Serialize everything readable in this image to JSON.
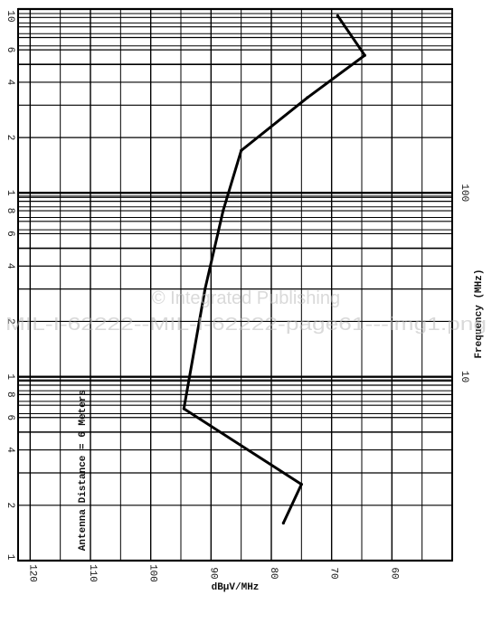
{
  "chart_data": {
    "type": "line",
    "orientation": "frequency-vertical",
    "title": "",
    "xlabel": "dBμV/MHz",
    "ylabel": "Frequency (MHz)",
    "x_reversed": true,
    "xlim": [
      50,
      122
    ],
    "ylim": [
      1,
      1000
    ],
    "y_scale": "log",
    "grid": true,
    "x_ticks": [
      120,
      110,
      100,
      90,
      80,
      70,
      60
    ],
    "x_tick_labels": [
      "120",
      "110",
      "100",
      "90",
      "80",
      "70",
      "60"
    ],
    "y_minor_labels": [
      {
        "value": 1,
        "label": "1"
      },
      {
        "value": 2,
        "label": "2"
      },
      {
        "value": 4,
        "label": "4"
      },
      {
        "value": 6,
        "label": "6"
      },
      {
        "value": 8,
        "label": "8"
      },
      {
        "value": 10,
        "label": "1"
      },
      {
        "value": 20,
        "label": "2"
      },
      {
        "value": 40,
        "label": "4"
      },
      {
        "value": 60,
        "label": "6"
      },
      {
        "value": 80,
        "label": "8"
      },
      {
        "value": 100,
        "label": "1"
      },
      {
        "value": 200,
        "label": "2"
      },
      {
        "value": 400,
        "label": "4"
      },
      {
        "value": 600,
        "label": "6"
      },
      {
        "value": 1000,
        "label": "10"
      }
    ],
    "y_decade_labels": [
      {
        "value": 10,
        "label": "10"
      },
      {
        "value": 100,
        "label": "100"
      }
    ],
    "annotations": [
      {
        "text": "Antenna Distance = 6 Meters"
      }
    ],
    "watermark": {
      "line1": "© Integrated Publishing",
      "line2": "MIL-I-62222--MIL-I-62222-page61---img1.png"
    },
    "series": [
      {
        "x": [
          78,
          75,
          94.5,
          91,
          88,
          85,
          74,
          64.5,
          69
        ],
        "y": [
          1.6,
          2.6,
          6.7,
          30,
          80,
          170,
          330,
          560,
          920
        ]
      }
    ]
  }
}
